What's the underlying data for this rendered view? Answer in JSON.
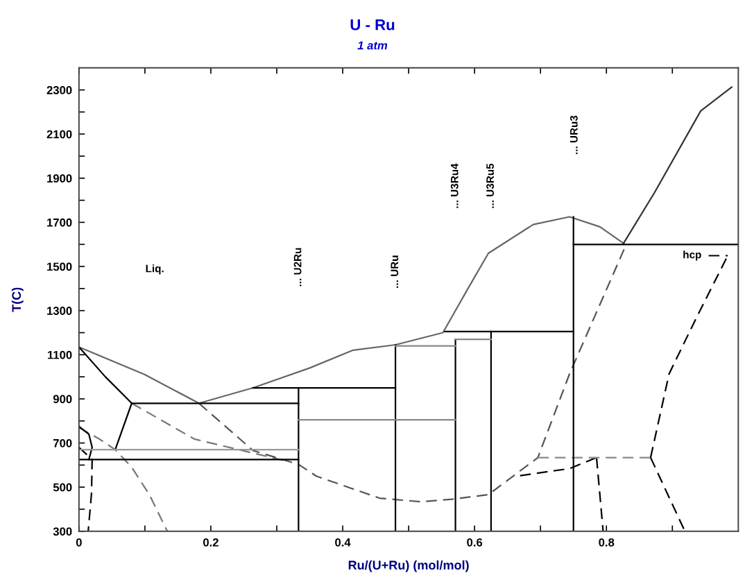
{
  "chart_data": {
    "type": "line",
    "title": "U - Ru",
    "subtitle": "1 atm",
    "xlabel": "Ru/(U+Ru) (mol/mol)",
    "ylabel": "T(C)",
    "xlim": [
      0,
      1
    ],
    "ylim": [
      300,
      2400
    ],
    "xticks": [
      0,
      {
        "value": 0.1,
        "label": null
      },
      0.2,
      {
        "value": 0.3,
        "label": null
      },
      0.4,
      {
        "value": 0.5,
        "label": null
      },
      0.6,
      {
        "value": 0.7,
        "label": null
      },
      0.8,
      {
        "value": 0.9,
        "label": null
      }
    ],
    "yticks": [
      300,
      {
        "value": 400,
        "label": null
      },
      500,
      {
        "value": 600,
        "label": null
      },
      700,
      {
        "value": 800,
        "label": null
      },
      900,
      {
        "value": 1000,
        "label": null
      },
      1100,
      {
        "value": 1200,
        "label": null
      },
      1300,
      {
        "value": 1400,
        "label": null
      },
      1500,
      {
        "value": 1600,
        "label": null
      },
      1700,
      {
        "value": 1800,
        "label": null
      },
      1900,
      {
        "value": 2000,
        "label": null
      },
      2100,
      {
        "value": 2200,
        "label": null
      },
      2300
    ],
    "annotations": [
      "Liq.",
      "... U2Ru",
      "... URu",
      "... U3Ru4",
      "... U3Ru5",
      "... URu3",
      "hcp"
    ],
    "series": [
      {
        "color": "#666666",
        "line_style": "solid",
        "x": [
          0,
          0.1,
          0.182,
          0.264,
          0.35,
          0.415,
          0.48,
          0.552,
          0.59,
          0.621,
          0.689,
          0.744,
          0.79,
          0.826
        ],
        "values": [
          1135,
          1010,
          880,
          950,
          1040,
          1120,
          1145,
          1200,
          1400,
          1560,
          1690,
          1725,
          1680,
          1605
        ]
      },
      {
        "color": "#333333",
        "line_style": "solid",
        "x": [
          0.826,
          0.873,
          0.943,
          0.99
        ],
        "values": [
          1605,
          1835,
          2205,
          2313
        ]
      },
      {
        "color": "#000000",
        "line_style": "solid",
        "x": [
          0,
          0.04,
          0.08
        ],
        "values": [
          1135,
          1000,
          880
        ]
      },
      {
        "color": "#000000",
        "line_style": "solid",
        "x": [
          0.08,
          0.055
        ],
        "values": [
          880,
          670
        ]
      },
      {
        "color": "#777777",
        "line_style": "dashed",
        "x": [
          0,
          0.03,
          0.055,
          0.08,
          0.107,
          0.134
        ],
        "values": [
          770,
          720,
          670,
          590,
          465,
          300
        ]
      },
      {
        "color": "#000000",
        "line_style": "solid",
        "x": [
          0,
          0.015,
          0.02,
          0.015
        ],
        "values": [
          775,
          740,
          680,
          625
        ]
      },
      {
        "color": "#000000",
        "line_style": "dashed",
        "x": [
          0,
          0.02,
          0.019,
          0.014
        ],
        "values": [
          680,
          625,
          470,
          300
        ]
      },
      {
        "color": "#777777",
        "line_style": "dashed",
        "x": [
          0.08,
          0.175,
          0.312
        ],
        "values": [
          880,
          718,
          620
        ]
      },
      {
        "color": "#555555",
        "line_style": "dashed",
        "x": [
          0.182,
          0.264,
          0.333,
          0.36,
          0.456,
          0.518,
          0.565,
          0.621,
          0.696,
          0.744,
          0.83
        ],
        "values": [
          880,
          666,
          603,
          550,
          450,
          434,
          445,
          466,
          634,
          1013,
          1600
        ]
      },
      {
        "color": "#000000",
        "line_style": "dashed",
        "x": [
          0.669,
          0.744,
          0.785
        ],
        "values": [
          552,
          584,
          634
        ]
      },
      {
        "color": "#000000",
        "line_style": "dashed",
        "x": [
          0.785,
          0.795
        ],
        "values": [
          634,
          300
        ]
      },
      {
        "color": "#888888",
        "line_style": "dashed",
        "x": [
          0.696,
          0.867
        ],
        "values": [
          634,
          634
        ]
      },
      {
        "color": "#000000",
        "line_style": "dashed",
        "x": [
          0.867,
          0.919
        ],
        "values": [
          634,
          300
        ]
      },
      {
        "color": "#000000",
        "line_style": "dashed",
        "x": [
          0.867,
          0.895,
          0.936,
          0.984
        ],
        "values": [
          634,
          1013,
          1265,
          1549
        ]
      },
      {
        "color": "#000000",
        "line_style": "dashed",
        "x": [
          0.955,
          0.984
        ],
        "values": [
          1549,
          1549
        ]
      },
      {
        "color": "#000000",
        "line_style": "solid",
        "x": [
          0.333,
          0.333
        ],
        "values": [
          300,
          950
        ]
      },
      {
        "color": "#000000",
        "line_style": "solid",
        "x": [
          0.48,
          0.48
        ],
        "values": [
          300,
          1145
        ]
      },
      {
        "color": "#000000",
        "line_style": "solid",
        "x": [
          0.571,
          0.571
        ],
        "values": [
          300,
          1170
        ]
      },
      {
        "color": "#000000",
        "line_style": "solid",
        "x": [
          0.625,
          0.625
        ],
        "values": [
          300,
          1205
        ]
      },
      {
        "color": "#000000",
        "line_style": "solid",
        "x": [
          0.75,
          0.75
        ],
        "values": [
          300,
          1725
        ]
      },
      {
        "color": "#000000",
        "line_style": "solid",
        "x": [
          0.08,
          0.333
        ],
        "values": [
          880,
          880
        ]
      },
      {
        "color": "#000000",
        "line_style": "solid",
        "x": [
          0.264,
          0.48
        ],
        "values": [
          950,
          950
        ]
      },
      {
        "color": "#888888",
        "line_style": "solid",
        "x": [
          0.333,
          0.571
        ],
        "values": [
          805,
          805
        ]
      },
      {
        "color": "#999999",
        "line_style": "solid",
        "x": [
          0,
          0.333
        ],
        "values": [
          670,
          670
        ]
      },
      {
        "color": "#000000",
        "line_style": "solid",
        "x": [
          0,
          0.333
        ],
        "values": [
          625,
          625
        ]
      },
      {
        "color": "#888888",
        "line_style": "solid",
        "x": [
          0.48,
          0.571
        ],
        "values": [
          1140,
          1140
        ]
      },
      {
        "color": "#888888",
        "line_style": "solid",
        "x": [
          0.571,
          0.625
        ],
        "values": [
          1170,
          1170
        ]
      },
      {
        "color": "#000000",
        "line_style": "solid",
        "x": [
          0.555,
          0.75
        ],
        "values": [
          1205,
          1205
        ]
      },
      {
        "color": "#000000",
        "line_style": "solid",
        "x": [
          0.75,
          1.0
        ],
        "values": [
          1600,
          1600
        ]
      }
    ]
  }
}
